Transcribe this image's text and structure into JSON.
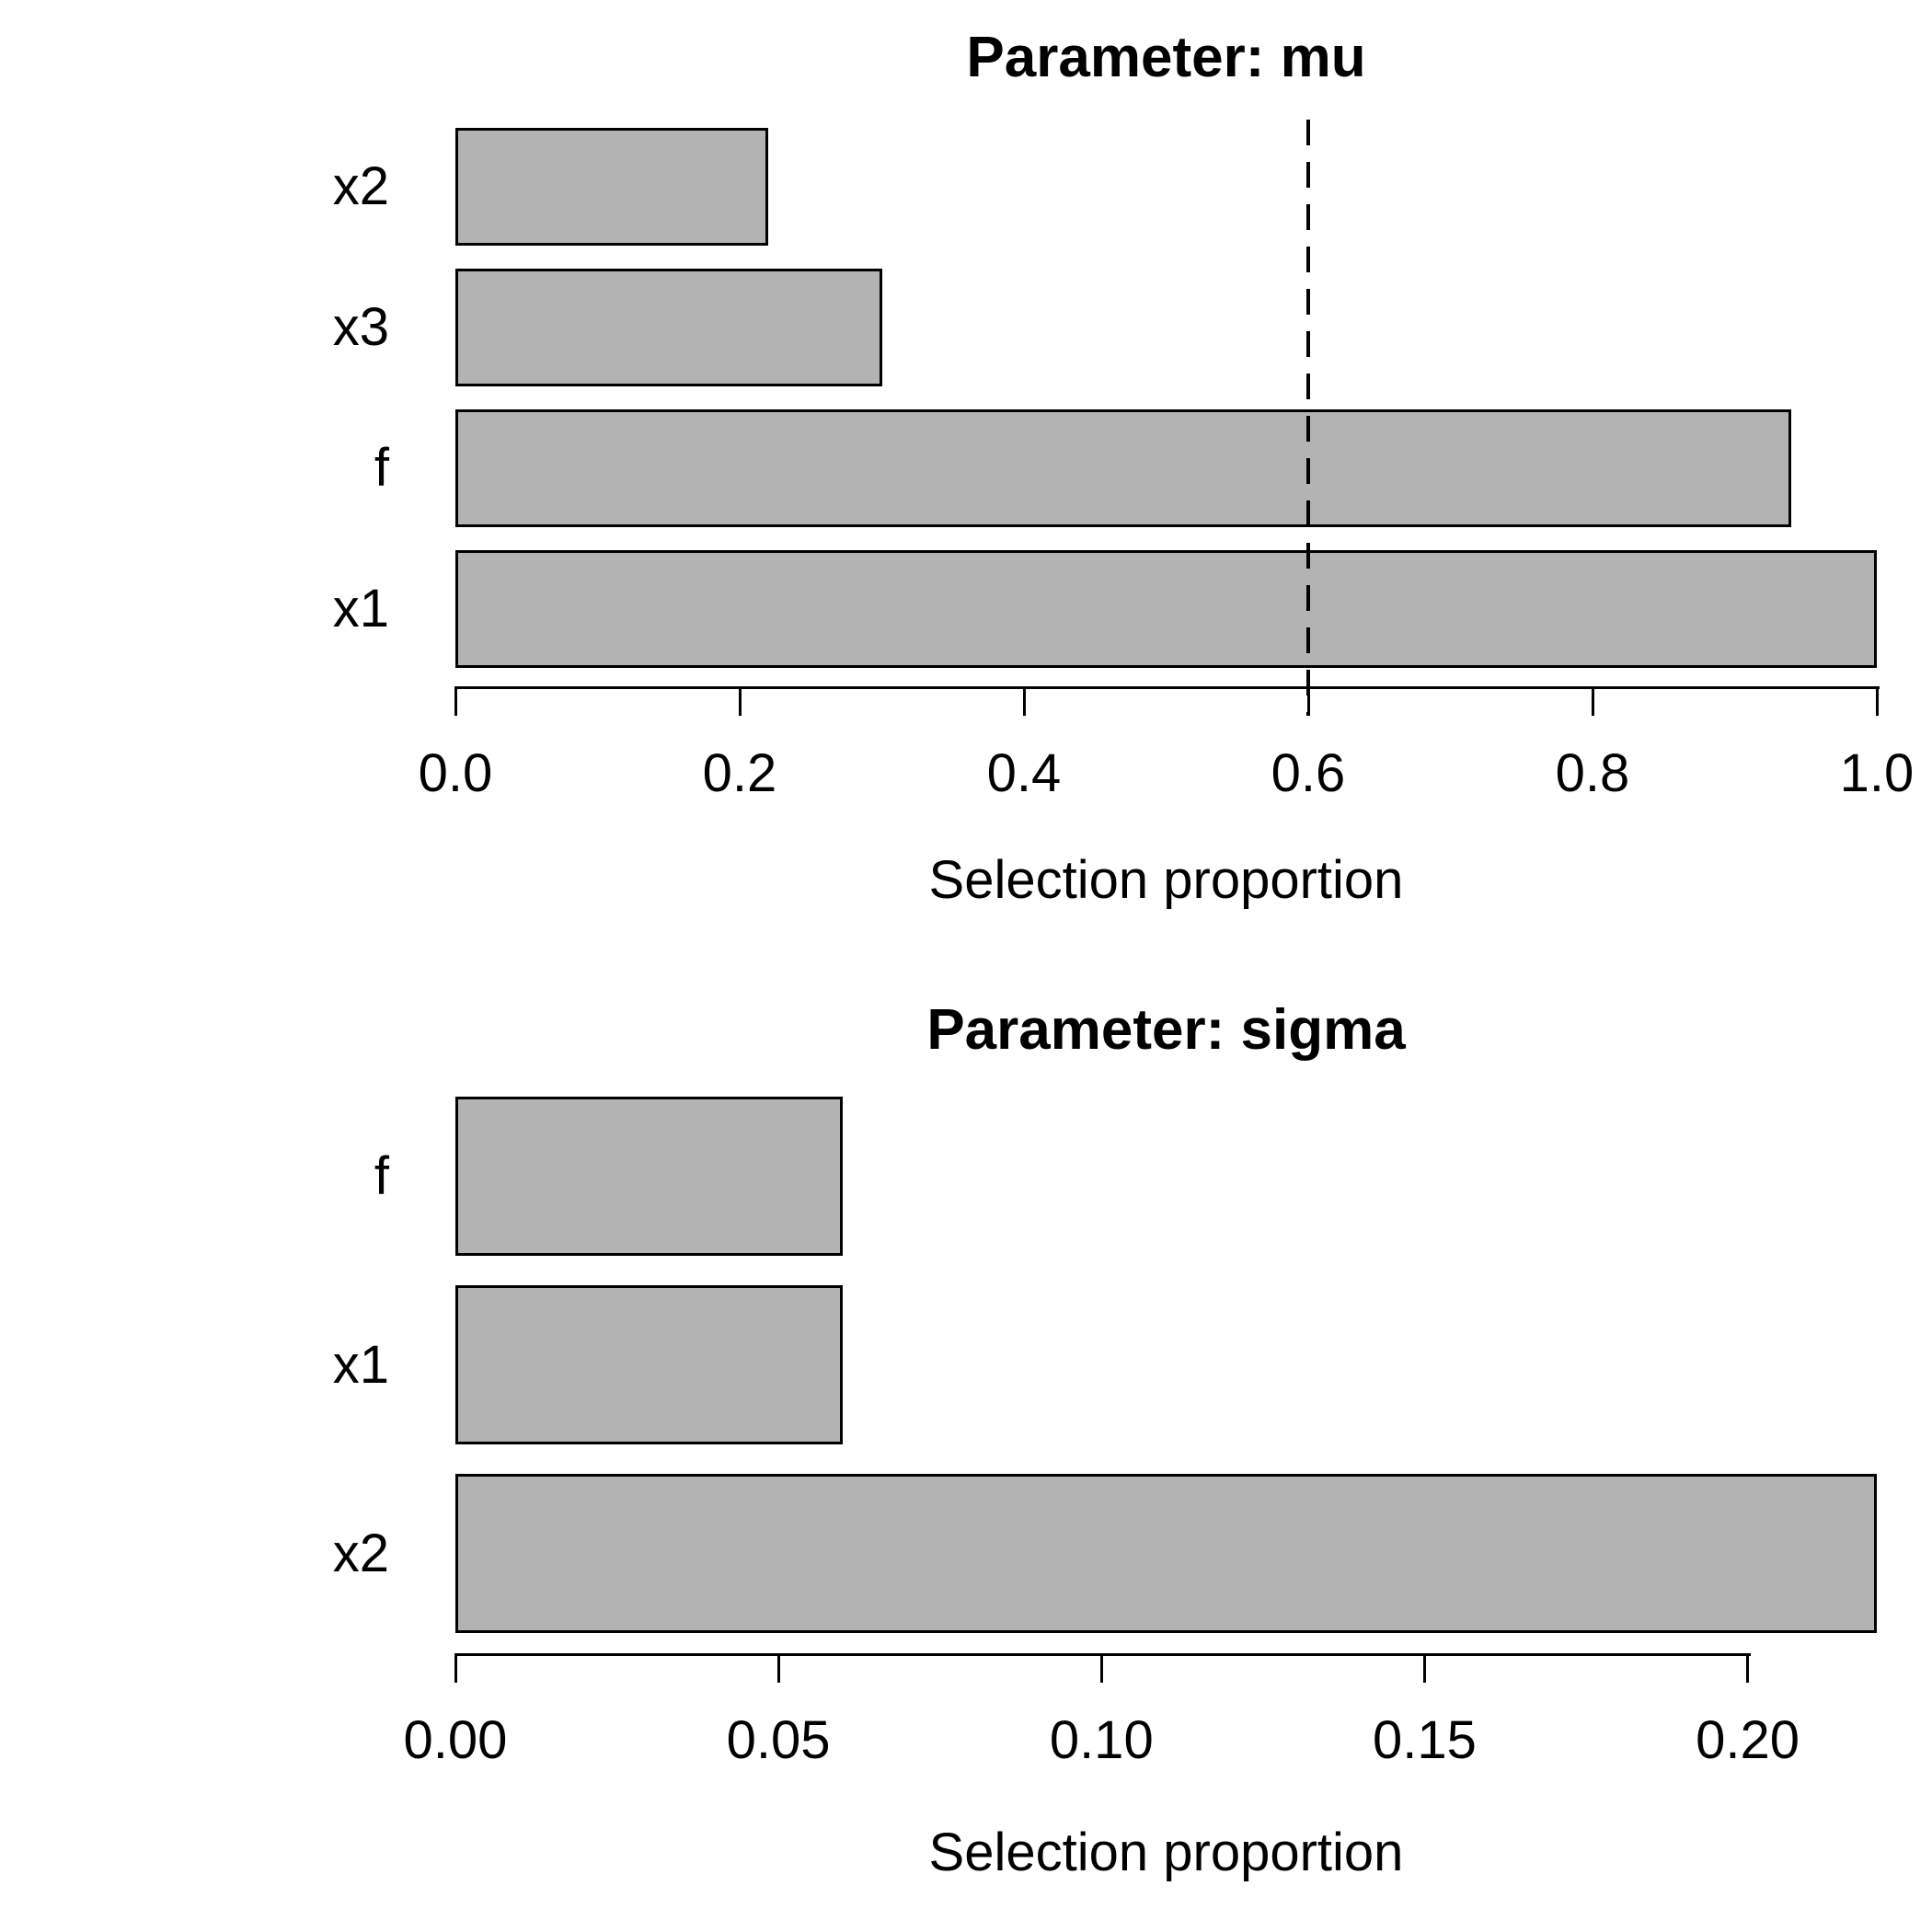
{
  "figure": {
    "background": "#ffffff",
    "bar_fill": "#b3b3b3",
    "bar_border": "#000000",
    "text_color": "#000000"
  },
  "chart_data": [
    {
      "type": "bar",
      "orientation": "horizontal",
      "title": "Parameter: mu",
      "xlabel": "Selection proportion",
      "categories": [
        "x2",
        "x3",
        "f",
        "x1"
      ],
      "values": [
        0.22,
        0.3,
        0.94,
        1.0
      ],
      "xlim": [
        0,
        1.0
      ],
      "xticks": [
        0,
        0.2,
        0.4,
        0.6,
        0.8,
        1.0
      ],
      "xtick_labels": [
        "0.0",
        "0.2",
        "0.4",
        "0.6",
        "0.8",
        "1.0"
      ],
      "threshold_line": {
        "value": 0.6,
        "style": "dashed",
        "color": "#000000"
      },
      "grid": false,
      "legend": null
    },
    {
      "type": "bar",
      "orientation": "horizontal",
      "title": "Parameter: sigma",
      "xlabel": "Selection proportion",
      "categories": [
        "f",
        "x1",
        "x2"
      ],
      "values": [
        0.06,
        0.06,
        0.22
      ],
      "xlim": [
        0,
        0.22
      ],
      "xticks": [
        0,
        0.05,
        0.1,
        0.15,
        0.2
      ],
      "xtick_labels": [
        "0.00",
        "0.05",
        "0.10",
        "0.15",
        "0.20"
      ],
      "threshold_line": null,
      "grid": false,
      "legend": null
    }
  ]
}
